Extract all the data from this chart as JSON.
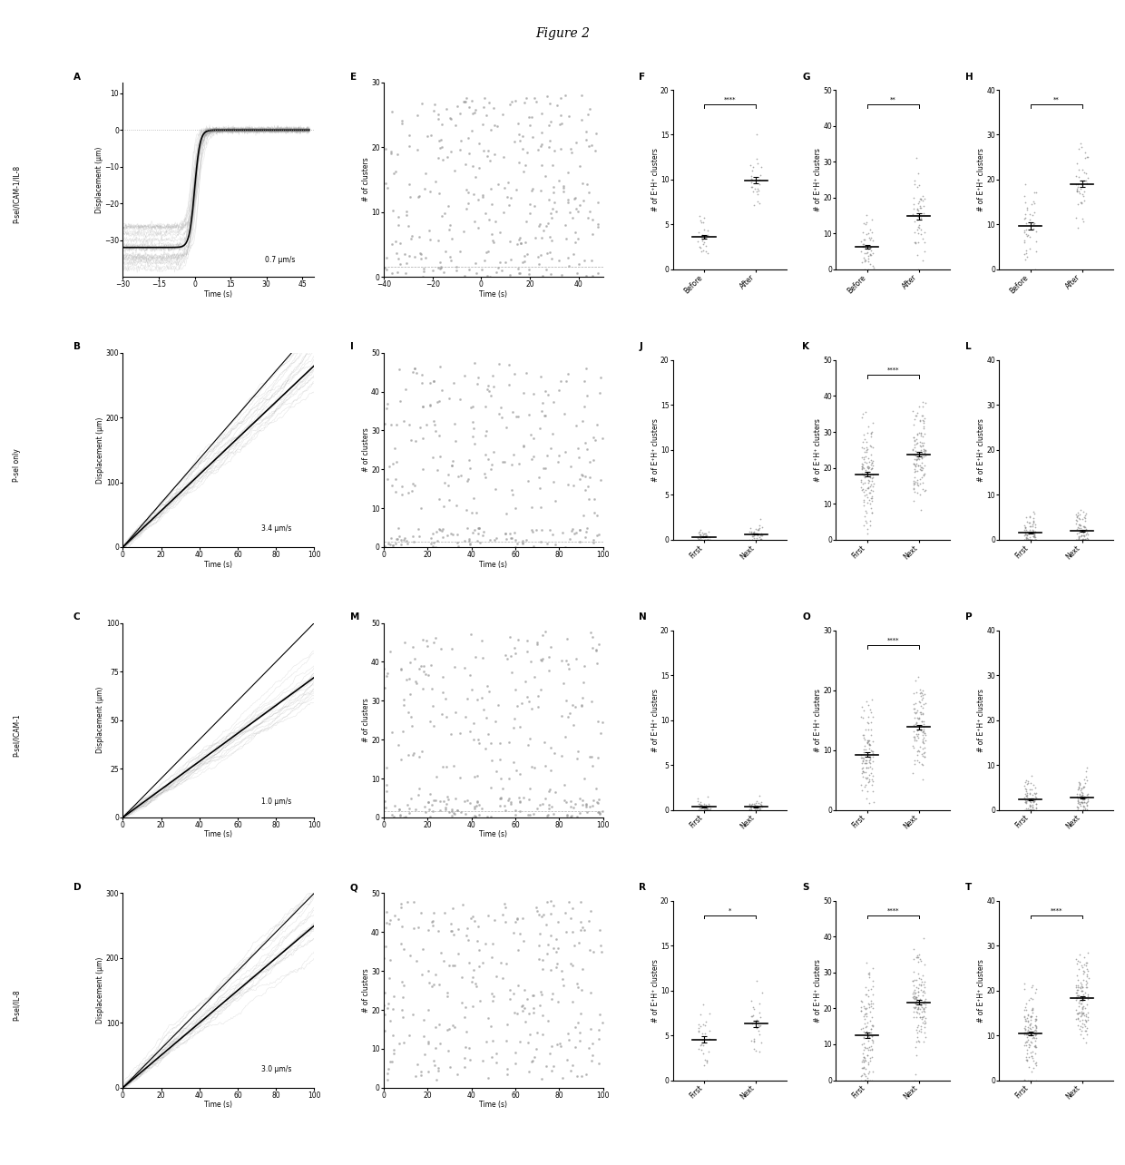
{
  "title": "Figure 2",
  "row_labels": [
    "P-sel/ICAM-1/IL-8",
    "P-sel only",
    "P-sel/ICAM-1",
    "P-sel/IL-8"
  ],
  "panel_A": {
    "speed": "0.7 μm/s",
    "xlim": [
      -30,
      50
    ],
    "ylim": [
      -40,
      13
    ],
    "xticks": [
      -30,
      -15,
      0,
      15,
      30,
      45
    ],
    "yticks": [
      -30,
      -20,
      -10,
      0,
      10
    ]
  },
  "panel_B": {
    "speed": "3.4 μm/s",
    "xlim": [
      0,
      100
    ],
    "ylim": [
      0,
      300
    ],
    "xticks": [
      0,
      20,
      40,
      60,
      80,
      100
    ],
    "yticks": [
      0,
      100,
      200,
      300
    ]
  },
  "panel_C": {
    "speed": "1.0 μm/s",
    "xlim": [
      0,
      100
    ],
    "ylim": [
      0,
      100
    ],
    "xticks": [
      0,
      20,
      40,
      60,
      80,
      100
    ],
    "yticks": [
      0,
      25,
      50,
      75,
      100
    ]
  },
  "panel_D": {
    "speed": "3.0 μm/s",
    "xlim": [
      0,
      100
    ],
    "ylim": [
      0,
      300
    ],
    "xticks": [
      0,
      20,
      40,
      60,
      80,
      100
    ],
    "yticks": [
      0,
      100,
      200,
      300
    ]
  },
  "panel_E": {
    "xlim": [
      -40,
      50
    ],
    "ylim": [
      0,
      30
    ],
    "xticks": [
      -40,
      -20,
      0,
      20,
      40
    ],
    "yticks": [
      0,
      10,
      20,
      30
    ]
  },
  "panel_I": {
    "xlim": [
      0,
      100
    ],
    "ylim": [
      0,
      50
    ],
    "xticks": [
      0,
      20,
      40,
      60,
      80,
      100
    ],
    "yticks": [
      0,
      10,
      20,
      30,
      40,
      50
    ]
  },
  "panel_M": {
    "xlim": [
      0,
      100
    ],
    "ylim": [
      0,
      50
    ],
    "xticks": [
      0,
      20,
      40,
      60,
      80,
      100
    ],
    "yticks": [
      0,
      10,
      20,
      30,
      40,
      50
    ]
  },
  "panel_Q": {
    "xlim": [
      0,
      100
    ],
    "ylim": [
      0,
      50
    ],
    "xticks": [
      0,
      20,
      40,
      60,
      80,
      100
    ],
    "yticks": [
      0,
      10,
      20,
      30,
      40,
      50
    ]
  },
  "scatter_F": {
    "cat1": "Before",
    "cat2": "After",
    "ylim": [
      0,
      20
    ],
    "yticks": [
      0,
      5,
      10,
      15,
      20
    ],
    "ylabel": "# of E⁺H⁺ clusters",
    "sig": "****",
    "mean1": 3.0,
    "std1": 1.5,
    "mean2": 10.0,
    "std2": 1.5,
    "n": 25
  },
  "scatter_G": {
    "cat1": "Before",
    "cat2": "After",
    "ylim": [
      0,
      50
    ],
    "yticks": [
      0,
      10,
      20,
      30,
      40,
      50
    ],
    "ylabel": "# of E⁺H⁺ clusters",
    "sig": "**",
    "mean1": 7.0,
    "std1": 4.0,
    "mean2": 14.0,
    "std2": 6.0,
    "n": 50
  },
  "scatter_H": {
    "cat1": "Before",
    "cat2": "After",
    "ylim": [
      0,
      40
    ],
    "yticks": [
      0,
      10,
      20,
      30,
      40
    ],
    "ylabel": "# of E⁺H⁺ clusters",
    "sig": "**",
    "mean1": 10.0,
    "std1": 5.0,
    "mean2": 18.0,
    "std2": 5.0,
    "n": 40
  },
  "scatter_J": {
    "cat1": "First",
    "cat2": "Next",
    "ylim": [
      0,
      20
    ],
    "yticks": [
      0,
      5,
      10,
      15,
      20
    ],
    "ylabel": "# of E⁺H⁺ clusters",
    "sig": null,
    "mean1": 0.3,
    "std1": 0.5,
    "mean2": 0.5,
    "std2": 0.7,
    "n": 40
  },
  "scatter_K": {
    "cat1": "First",
    "cat2": "Next",
    "ylim": [
      0,
      50
    ],
    "yticks": [
      0,
      10,
      20,
      30,
      40,
      50
    ],
    "ylabel": "# of E⁺H⁺ clusters",
    "sig": "****",
    "mean1": 18.0,
    "std1": 7.0,
    "mean2": 23.0,
    "std2": 7.0,
    "n": 120
  },
  "scatter_L": {
    "cat1": "First",
    "cat2": "Next",
    "ylim": [
      0,
      40
    ],
    "yticks": [
      0,
      10,
      20,
      30,
      40
    ],
    "ylabel": "# of E⁺H⁺ clusters",
    "sig": null,
    "mean1": 1.5,
    "std1": 2.0,
    "mean2": 2.0,
    "std2": 2.5,
    "n": 80
  },
  "scatter_N": {
    "cat1": "First",
    "cat2": "Next",
    "ylim": [
      0,
      20
    ],
    "yticks": [
      0,
      5,
      10,
      15,
      20
    ],
    "ylabel": "# of E⁺H⁺ clusters",
    "sig": null,
    "mean1": 0.3,
    "std1": 0.5,
    "mean2": 0.3,
    "std2": 0.5,
    "n": 40
  },
  "scatter_O": {
    "cat1": "First",
    "cat2": "Next",
    "ylim": [
      0,
      30
    ],
    "yticks": [
      0,
      10,
      20,
      30
    ],
    "ylabel": "# of E⁺H⁺ clusters",
    "sig": "****",
    "mean1": 9.0,
    "std1": 4.0,
    "mean2": 14.0,
    "std2": 4.0,
    "n": 100
  },
  "scatter_P": {
    "cat1": "First",
    "cat2": "Next",
    "ylim": [
      0,
      40
    ],
    "yticks": [
      0,
      10,
      20,
      30,
      40
    ],
    "ylabel": "# of E⁺H⁺ clusters",
    "sig": null,
    "mean1": 2.0,
    "std1": 2.5,
    "mean2": 2.5,
    "std2": 3.0,
    "n": 80
  },
  "scatter_R": {
    "cat1": "First",
    "cat2": "Next",
    "ylim": [
      0,
      20
    ],
    "yticks": [
      0,
      5,
      10,
      15,
      20
    ],
    "ylabel": "# of E⁺H⁺ clusters",
    "sig": "*",
    "mean1": 5.0,
    "std1": 2.0,
    "mean2": 7.0,
    "std2": 2.0,
    "n": 30
  },
  "scatter_S": {
    "cat1": "First",
    "cat2": "Next",
    "ylim": [
      0,
      50
    ],
    "yticks": [
      0,
      10,
      20,
      30,
      40,
      50
    ],
    "ylabel": "# of E⁺H⁺ clusters",
    "sig": "****",
    "mean1": 12.0,
    "std1": 8.0,
    "mean2": 22.0,
    "std2": 8.0,
    "n": 120
  },
  "scatter_T": {
    "cat1": "First",
    "cat2": "Next",
    "ylim": [
      0,
      40
    ],
    "yticks": [
      0,
      10,
      20,
      30,
      40
    ],
    "ylabel": "# of E⁺H⁺ clusters",
    "sig": "****",
    "mean1": 10.0,
    "std1": 5.0,
    "mean2": 18.0,
    "std2": 5.0,
    "n": 120
  }
}
